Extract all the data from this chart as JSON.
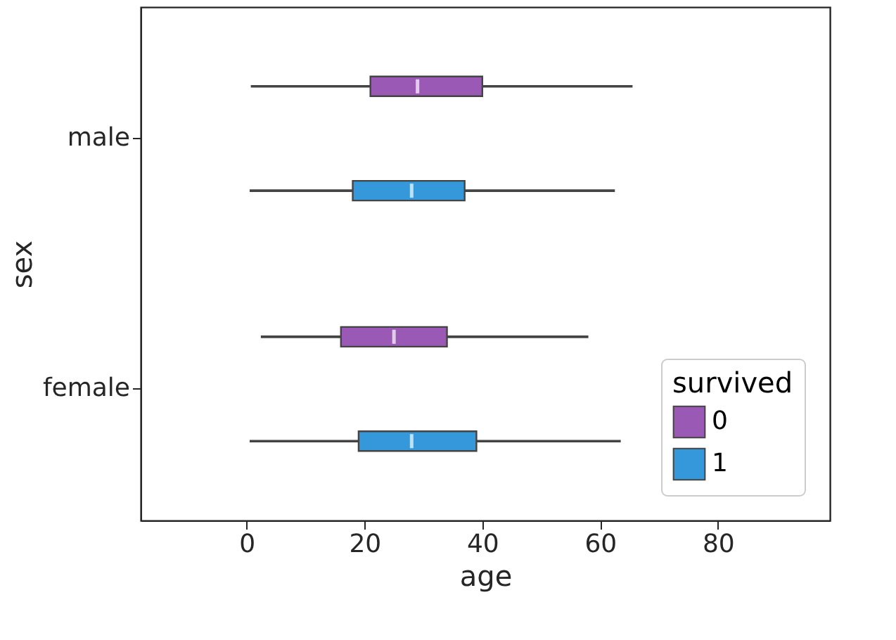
{
  "chart_data": {
    "type": "box",
    "orientation": "horizontal",
    "xlabel": "age",
    "ylabel": "sex",
    "legend_title": "survived",
    "legend": "bottom right",
    "grid": false,
    "categories": [
      "male",
      "female"
    ],
    "xlim": [
      -18,
      99
    ],
    "xticks": [
      0,
      20,
      40,
      60,
      80
    ],
    "series": [
      {
        "name": "0",
        "color": "#9b59b6",
        "boxes": [
          {
            "low": 0.7,
            "q1": 21,
            "median": 29,
            "q3": 40,
            "high": 65.5
          },
          {
            "low": 2.4,
            "q1": 16,
            "median": 25,
            "q3": 34,
            "high": 58
          }
        ]
      },
      {
        "name": "1",
        "color": "#3498db",
        "boxes": [
          {
            "low": 0.5,
            "q1": 18,
            "median": 28,
            "q3": 37,
            "high": 62.5
          },
          {
            "low": 0.5,
            "q1": 19,
            "median": 28,
            "q3": 39,
            "high": 63.5
          }
        ]
      }
    ]
  }
}
